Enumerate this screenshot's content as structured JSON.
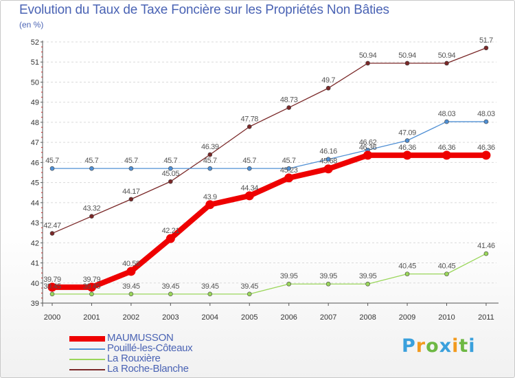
{
  "chart_data": {
    "type": "line",
    "title": "Evolution du Taux de Taxe Foncière sur les Propriétés Non Bâties",
    "ylabel": "(en %)",
    "xlabel": "",
    "ylim": [
      39,
      52
    ],
    "yticks": [
      "39",
      "40",
      "41",
      "42",
      "43",
      "44",
      "45",
      "46",
      "47",
      "48",
      "49",
      "50",
      "51",
      "52"
    ],
    "categories": [
      "2000",
      "2001",
      "2002",
      "2003",
      "2004",
      "2005",
      "2006",
      "2007",
      "2008",
      "2009",
      "2010",
      "2011"
    ],
    "series": [
      {
        "name": "MAUMUSSON",
        "color": "#ee0000",
        "values": [
          39.79,
          39.79,
          40.58,
          42.21,
          43.9,
          44.34,
          45.23,
          45.68,
          46.36,
          46.36,
          46.36,
          46.36
        ],
        "labels": [
          "39.79",
          "39.79",
          "40.58",
          "42.21",
          "43.9",
          "44.34",
          "45.23",
          "45.68",
          "46.36",
          "46.36",
          "46.36",
          "46.36"
        ]
      },
      {
        "name": "Pouillé-les-Côteaux",
        "color": "#4f8fd4",
        "values": [
          45.7,
          45.7,
          45.7,
          45.7,
          45.7,
          45.7,
          45.7,
          46.16,
          46.62,
          47.09,
          48.03,
          48.03
        ],
        "labels": [
          "45.7",
          "45.7",
          "45.7",
          "45.7",
          "45.7",
          "45.7",
          "45.7",
          "46.16",
          "46.62",
          "47.09",
          "48.03",
          "48.03"
        ]
      },
      {
        "name": "La Rouxière",
        "color": "#9ad65a",
        "values": [
          39.45,
          39.45,
          39.45,
          39.45,
          39.45,
          39.45,
          39.95,
          39.95,
          39.95,
          40.45,
          40.45,
          41.46
        ],
        "labels": [
          "39.45",
          "39.45",
          "39.45",
          "39.45",
          "39.45",
          "39.45",
          "39.95",
          "39.95",
          "39.95",
          "40.45",
          "40.45",
          "41.46"
        ]
      },
      {
        "name": "La Roche-Blanche",
        "color": "#7a2828",
        "values": [
          42.47,
          43.32,
          44.17,
          45.05,
          46.39,
          47.78,
          48.73,
          49.7,
          50.94,
          50.94,
          50.94,
          51.7
        ],
        "labels": [
          "42.47",
          "43.32",
          "44.17",
          "45.05",
          "46.39",
          "47.78",
          "48.73",
          "49.7",
          "50.94",
          "50.94",
          "50.94",
          "51.7"
        ]
      }
    ]
  },
  "legend": {
    "items": [
      {
        "label": "MAUMUSSON",
        "color": "#ee0000"
      },
      {
        "label": "Pouillé-les-Côteaux",
        "color": "#4f8fd4"
      },
      {
        "label": "La Rouxière",
        "color": "#9ad65a"
      },
      {
        "label": "La Roche-Blanche",
        "color": "#7a2828"
      }
    ]
  },
  "logo": {
    "letters": [
      "P",
      "r",
      "o",
      "x",
      "i",
      "t",
      "i"
    ],
    "colors": [
      "#3aa0dc",
      "#f29a1e",
      "#6db843",
      "#3aa0dc",
      "#f29a1e",
      "#6db843",
      "#3aa0dc"
    ]
  }
}
